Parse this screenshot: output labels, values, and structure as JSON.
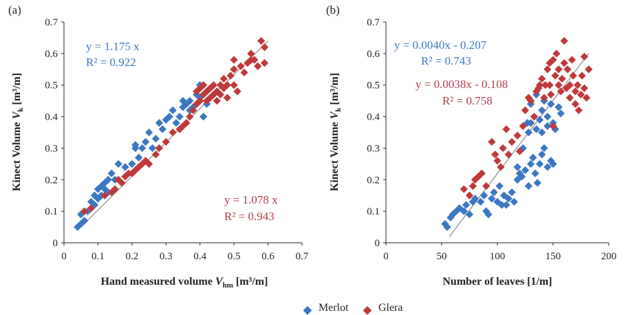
{
  "colors": {
    "merlot": "#3b78c4",
    "glera": "#c0393b",
    "fit": "#8a8a8a",
    "axis": "#222222"
  },
  "legend": {
    "merlot_label": "Merlot",
    "glera_label": "Glera"
  },
  "chart_data": [
    {
      "type": "scatter",
      "panel_label": "(a)",
      "xlabel": "Hand measured volume",
      "xlabel_sym": "V",
      "xlabel_sub": "hm",
      "xlabel_unit": " [m³/m]",
      "ylabel": "Kinect Volume",
      "ylabel_sym": "V",
      "ylabel_sub": "k",
      "ylabel_unit": " [m³/m]",
      "xlim": [
        0,
        0.7
      ],
      "ylim": [
        0,
        0.7
      ],
      "xticks": [
        0,
        0.1,
        0.2,
        0.3,
        0.4,
        0.5,
        0.6,
        0.7
      ],
      "yticks": [
        0,
        0.1,
        0.2,
        0.3,
        0.4,
        0.5,
        0.6,
        0.7
      ],
      "xtick_labels": [
        "0",
        "0.1",
        "0.2",
        "0.3",
        "0.4",
        "0.5",
        "0.6",
        "0.7"
      ],
      "ytick_labels": [
        "0",
        "0.1",
        "0.2",
        "0.3",
        "0.4",
        "0.5",
        "0.6",
        "0.7"
      ],
      "fit_line": {
        "x": [
          0.05,
          0.6
        ],
        "y": [
          0.05,
          0.64
        ]
      },
      "annotations": [
        {
          "series": "Merlot",
          "eq": "y = 1.175 x",
          "r2": "R² = 0.922"
        },
        {
          "series": "Glera",
          "eq": "y = 1.078 x",
          "r2": "R² = 0.943"
        }
      ],
      "series": [
        {
          "name": "Merlot",
          "points": [
            [
              0.04,
              0.05
            ],
            [
              0.05,
              0.06
            ],
            [
              0.06,
              0.07
            ],
            [
              0.05,
              0.09
            ],
            [
              0.07,
              0.1
            ],
            [
              0.08,
              0.11
            ],
            [
              0.09,
              0.12
            ],
            [
              0.08,
              0.13
            ],
            [
              0.1,
              0.14
            ],
            [
              0.11,
              0.15
            ],
            [
              0.09,
              0.15
            ],
            [
              0.1,
              0.17
            ],
            [
              0.12,
              0.17
            ],
            [
              0.11,
              0.18
            ],
            [
              0.12,
              0.19
            ],
            [
              0.13,
              0.2
            ],
            [
              0.14,
              0.22
            ],
            [
              0.15,
              0.2
            ],
            [
              0.16,
              0.25
            ],
            [
              0.18,
              0.24
            ],
            [
              0.2,
              0.25
            ],
            [
              0.21,
              0.3
            ],
            [
              0.21,
              0.31
            ],
            [
              0.23,
              0.3
            ],
            [
              0.24,
              0.32
            ],
            [
              0.25,
              0.35
            ],
            [
              0.26,
              0.3
            ],
            [
              0.27,
              0.33
            ],
            [
              0.28,
              0.38
            ],
            [
              0.29,
              0.36
            ],
            [
              0.3,
              0.39
            ],
            [
              0.31,
              0.4
            ],
            [
              0.32,
              0.42
            ],
            [
              0.33,
              0.38
            ],
            [
              0.34,
              0.4
            ],
            [
              0.35,
              0.43
            ],
            [
              0.36,
              0.44
            ],
            [
              0.37,
              0.45
            ],
            [
              0.38,
              0.43
            ],
            [
              0.39,
              0.47
            ],
            [
              0.4,
              0.46
            ],
            [
              0.41,
              0.4
            ],
            [
              0.42,
              0.44
            ],
            [
              0.37,
              0.42
            ],
            [
              0.35,
              0.45
            ],
            [
              0.4,
              0.5
            ],
            [
              0.22,
              0.27
            ],
            [
              0.13,
              0.16
            ]
          ]
        },
        {
          "name": "Glera",
          "points": [
            [
              0.06,
              0.1
            ],
            [
              0.08,
              0.11
            ],
            [
              0.12,
              0.15
            ],
            [
              0.14,
              0.16
            ],
            [
              0.15,
              0.17
            ],
            [
              0.16,
              0.2
            ],
            [
              0.17,
              0.19
            ],
            [
              0.18,
              0.21
            ],
            [
              0.19,
              0.22
            ],
            [
              0.2,
              0.22
            ],
            [
              0.21,
              0.23
            ],
            [
              0.22,
              0.24
            ],
            [
              0.23,
              0.25
            ],
            [
              0.24,
              0.26
            ],
            [
              0.25,
              0.25
            ],
            [
              0.27,
              0.28
            ],
            [
              0.28,
              0.3
            ],
            [
              0.3,
              0.32
            ],
            [
              0.32,
              0.35
            ],
            [
              0.34,
              0.36
            ],
            [
              0.35,
              0.37
            ],
            [
              0.36,
              0.38
            ],
            [
              0.37,
              0.4
            ],
            [
              0.38,
              0.42
            ],
            [
              0.39,
              0.44
            ],
            [
              0.39,
              0.48
            ],
            [
              0.4,
              0.49
            ],
            [
              0.4,
              0.45
            ],
            [
              0.41,
              0.47
            ],
            [
              0.41,
              0.5
            ],
            [
              0.42,
              0.48
            ],
            [
              0.42,
              0.45
            ],
            [
              0.43,
              0.46
            ],
            [
              0.43,
              0.49
            ],
            [
              0.44,
              0.5
            ],
            [
              0.44,
              0.47
            ],
            [
              0.45,
              0.45
            ],
            [
              0.45,
              0.48
            ],
            [
              0.46,
              0.5
            ],
            [
              0.46,
              0.47
            ],
            [
              0.47,
              0.52
            ],
            [
              0.47,
              0.49
            ],
            [
              0.48,
              0.46
            ],
            [
              0.48,
              0.5
            ],
            [
              0.49,
              0.53
            ],
            [
              0.5,
              0.5
            ],
            [
              0.5,
              0.55
            ],
            [
              0.51,
              0.48
            ],
            [
              0.52,
              0.56
            ],
            [
              0.53,
              0.54
            ],
            [
              0.54,
              0.57
            ],
            [
              0.55,
              0.6
            ],
            [
              0.56,
              0.58
            ],
            [
              0.57,
              0.56
            ],
            [
              0.58,
              0.64
            ],
            [
              0.59,
              0.62
            ],
            [
              0.59,
              0.57
            ],
            [
              0.55,
              0.58
            ],
            [
              0.5,
              0.58
            ]
          ]
        }
      ]
    },
    {
      "type": "scatter",
      "panel_label": "(b)",
      "xlabel": "Number of leaves [1/m]",
      "ylabel": "Kinect Volume",
      "ylabel_sym": "V",
      "ylabel_sub": "k",
      "ylabel_unit": " [m³/m]",
      "xlim": [
        0,
        200
      ],
      "ylim": [
        0,
        0.7
      ],
      "xticks": [
        0,
        50,
        100,
        150,
        200
      ],
      "yticks": [
        0,
        0.1,
        0.2,
        0.3,
        0.4,
        0.5,
        0.6,
        0.7
      ],
      "xtick_labels": [
        "0",
        "50",
        "100",
        "150",
        "200"
      ],
      "ytick_labels": [
        "0",
        "0.1",
        "0.2",
        "0.3",
        "0.4",
        "0.5",
        "0.6",
        "0.7"
      ],
      "fit_line": {
        "x": [
          57,
          182
        ],
        "y": [
          0.02,
          0.6
        ]
      },
      "annotations": [
        {
          "series": "Merlot",
          "eq": "y = 0.0040x - 0.207",
          "r2": "R² = 0.743"
        },
        {
          "series": "Glera",
          "eq": "y = 0.0038x - 0.108",
          "r2": "R² = 0.758"
        }
      ],
      "series": [
        {
          "name": "Merlot",
          "points": [
            [
              53,
              0.06
            ],
            [
              55,
              0.05
            ],
            [
              58,
              0.08
            ],
            [
              60,
              0.09
            ],
            [
              63,
              0.1
            ],
            [
              66,
              0.11
            ],
            [
              70,
              0.1
            ],
            [
              72,
              0.12
            ],
            [
              75,
              0.09
            ],
            [
              78,
              0.13
            ],
            [
              80,
              0.14
            ],
            [
              85,
              0.13
            ],
            [
              88,
              0.15
            ],
            [
              90,
              0.1
            ],
            [
              92,
              0.09
            ],
            [
              95,
              0.14
            ],
            [
              97,
              0.16
            ],
            [
              100,
              0.13
            ],
            [
              102,
              0.18
            ],
            [
              104,
              0.12
            ],
            [
              106,
              0.15
            ],
            [
              108,
              0.12
            ],
            [
              110,
              0.14
            ],
            [
              113,
              0.16
            ],
            [
              115,
              0.13
            ],
            [
              118,
              0.2
            ],
            [
              120,
              0.22
            ],
            [
              122,
              0.21
            ],
            [
              125,
              0.23
            ],
            [
              128,
              0.18
            ],
            [
              130,
              0.25
            ],
            [
              132,
              0.27
            ],
            [
              134,
              0.22
            ],
            [
              136,
              0.19
            ],
            [
              138,
              0.25
            ],
            [
              140,
              0.28
            ],
            [
              142,
              0.3
            ],
            [
              145,
              0.24
            ],
            [
              148,
              0.26
            ],
            [
              150,
              0.25
            ],
            [
              128,
              0.35
            ],
            [
              130,
              0.38
            ],
            [
              133,
              0.4
            ],
            [
              135,
              0.36
            ],
            [
              138,
              0.39
            ],
            [
              140,
              0.42
            ],
            [
              142,
              0.45
            ],
            [
              145,
              0.4
            ],
            [
              148,
              0.44
            ],
            [
              150,
              0.38
            ],
            [
              152,
              0.36
            ],
            [
              155,
              0.43
            ],
            [
              157,
              0.41
            ],
            [
              130,
              0.44
            ],
            [
              127,
              0.38
            ],
            [
              135,
              0.47
            ],
            [
              140,
              0.35
            ],
            [
              145,
              0.37
            ],
            [
              118,
              0.24
            ],
            [
              123,
              0.3
            ]
          ]
        },
        {
          "name": "Glera",
          "points": [
            [
              70,
              0.17
            ],
            [
              75,
              0.15
            ],
            [
              78,
              0.18
            ],
            [
              80,
              0.2
            ],
            [
              83,
              0.21
            ],
            [
              86,
              0.22
            ],
            [
              90,
              0.18
            ],
            [
              95,
              0.32
            ],
            [
              98,
              0.28
            ],
            [
              100,
              0.26
            ],
            [
              103,
              0.24
            ],
            [
              105,
              0.3
            ],
            [
              108,
              0.36
            ],
            [
              110,
              0.28
            ],
            [
              113,
              0.32
            ],
            [
              118,
              0.34
            ],
            [
              120,
              0.29
            ],
            [
              123,
              0.37
            ],
            [
              125,
              0.42
            ],
            [
              128,
              0.46
            ],
            [
              130,
              0.45
            ],
            [
              133,
              0.4
            ],
            [
              135,
              0.48
            ],
            [
              138,
              0.5
            ],
            [
              140,
              0.52
            ],
            [
              142,
              0.46
            ],
            [
              145,
              0.55
            ],
            [
              147,
              0.5
            ],
            [
              148,
              0.47
            ],
            [
              150,
              0.58
            ],
            [
              152,
              0.53
            ],
            [
              153,
              0.6
            ],
            [
              155,
              0.55
            ],
            [
              155,
              0.5
            ],
            [
              157,
              0.48
            ],
            [
              158,
              0.52
            ],
            [
              160,
              0.57
            ],
            [
              160,
              0.64
            ],
            [
              162,
              0.49
            ],
            [
              163,
              0.55
            ],
            [
              165,
              0.5
            ],
            [
              165,
              0.46
            ],
            [
              167,
              0.58
            ],
            [
              168,
              0.53
            ],
            [
              170,
              0.44
            ],
            [
              170,
              0.48
            ],
            [
              172,
              0.5
            ],
            [
              173,
              0.42
            ],
            [
              175,
              0.47
            ],
            [
              176,
              0.53
            ],
            [
              178,
              0.49
            ],
            [
              178,
              0.59
            ],
            [
              180,
              0.46
            ],
            [
              182,
              0.55
            ],
            [
              147,
              0.57
            ],
            [
              150,
              0.37
            ],
            [
              143,
              0.5
            ],
            [
              137,
              0.49
            ]
          ]
        }
      ]
    }
  ]
}
